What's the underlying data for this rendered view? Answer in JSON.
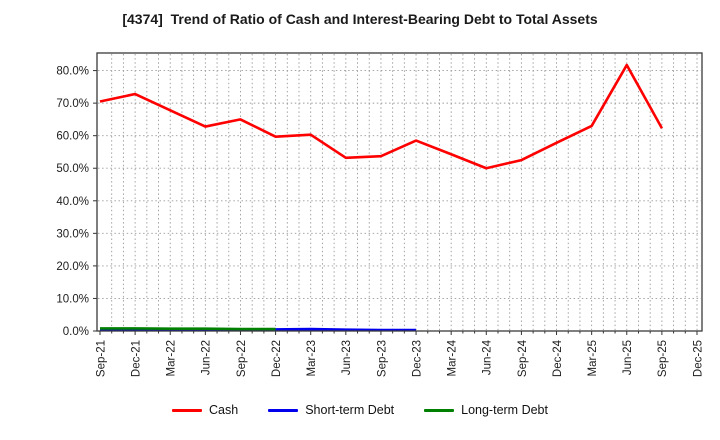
{
  "chart_data": {
    "type": "line",
    "title": "[4374]  Trend of Ratio of Cash and Interest-Bearing Debt to Total Assets",
    "categories": [
      "Sep-21",
      "Dec-21",
      "Mar-22",
      "Jun-22",
      "Sep-22",
      "Dec-22",
      "Mar-23",
      "Jun-23",
      "Sep-23",
      "Dec-23",
      "Mar-24",
      "Jun-24",
      "Sep-24",
      "Dec-24",
      "Mar-25",
      "Jun-25",
      "Sep-25",
      "Dec-25"
    ],
    "series": [
      {
        "name": "Cash",
        "color": "#ff0000",
        "values": [
          70.5,
          72.8,
          67.8,
          62.8,
          65.0,
          59.7,
          60.3,
          53.2,
          53.7,
          58.5,
          54.3,
          50.0,
          52.5,
          57.8,
          63.0,
          81.7,
          62.3,
          null
        ]
      },
      {
        "name": "Short-term Debt",
        "color": "#0000ee",
        "values": [
          0.4,
          0.4,
          0.4,
          0.5,
          0.5,
          0.5,
          0.6,
          0.4,
          0.3,
          0.3,
          null,
          null,
          null,
          null,
          null,
          null,
          null,
          null
        ]
      },
      {
        "name": "Long-term Debt",
        "color": "#008000",
        "values": [
          0.8,
          0.8,
          0.7,
          0.7,
          0.6,
          0.6,
          null,
          null,
          null,
          null,
          null,
          null,
          null,
          null,
          null,
          null,
          null,
          null
        ]
      }
    ],
    "ylim": [
      0,
      85.4
    ],
    "yticks": [
      {
        "value": 0,
        "label": "0.0%"
      },
      {
        "value": 10,
        "label": "10.0%"
      },
      {
        "value": 20,
        "label": "20.0%"
      },
      {
        "value": 30,
        "label": "30.0%"
      },
      {
        "value": 40,
        "label": "40.0%"
      },
      {
        "value": 50,
        "label": "50.0%"
      },
      {
        "value": 60,
        "label": "60.0%"
      },
      {
        "value": 70,
        "label": "70.0%"
      },
      {
        "value": 80,
        "label": "80.0%"
      }
    ],
    "grid": true,
    "grid_style": "dotted",
    "x_minor_per_interval": 3,
    "legend_position": "bottom"
  }
}
